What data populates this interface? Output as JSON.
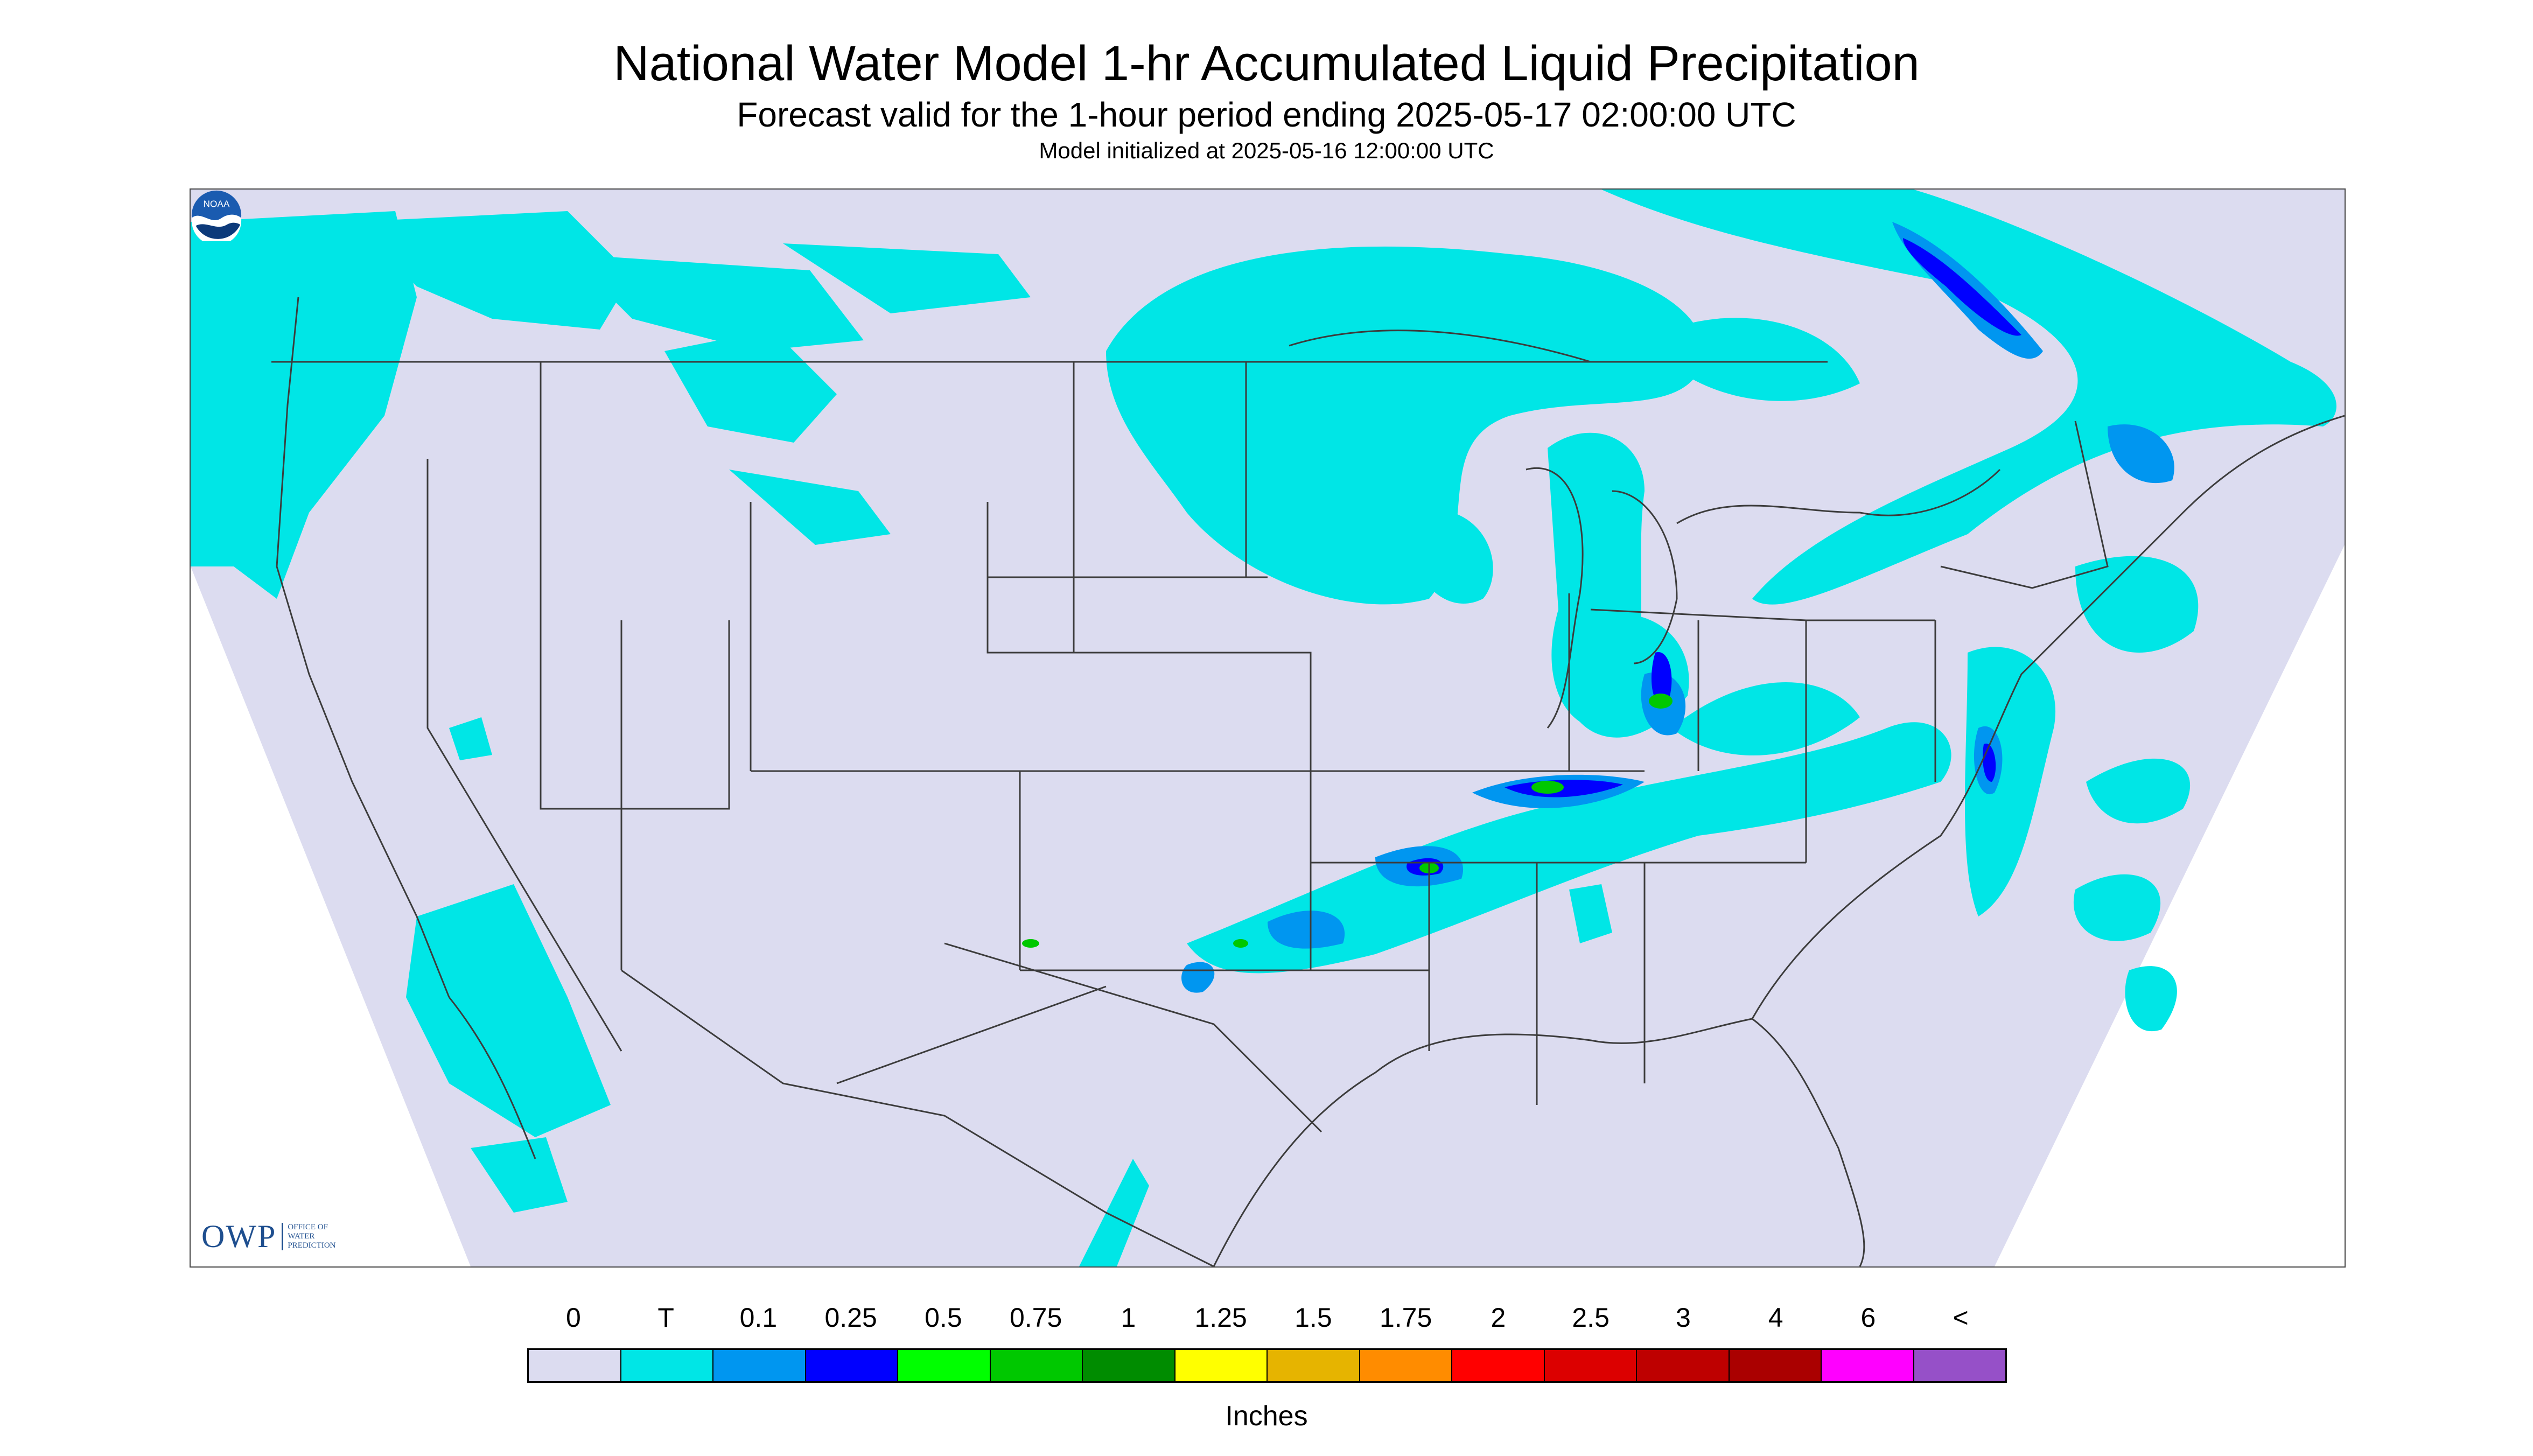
{
  "header": {
    "title": "National Water Model 1-hr Accumulated Liquid Precipitation",
    "subtitle": "Forecast valid for the 1-hour period ending 2025-05-17 02:00:00 UTC",
    "init_note": "Model initialized at 2025-05-16 12:00:00 UTC"
  },
  "logos": {
    "owp_mark": "OWP",
    "owp_text": [
      "OFFICE OF",
      "WATER",
      "PREDICTION"
    ],
    "noaa_text": "NOAA"
  },
  "legend": {
    "labels": [
      "0",
      "T",
      "0.1",
      "0.25",
      "0.5",
      "0.75",
      "1",
      "1.25",
      "1.5",
      "1.75",
      "2",
      "2.5",
      "3",
      "4",
      "6",
      "<"
    ],
    "colors": [
      "#dcdcf0",
      "#00e6e6",
      "#0096f0",
      "#0000ff",
      "#00ff00",
      "#00c800",
      "#008c00",
      "#ffff00",
      "#e6b400",
      "#ff8c00",
      "#ff0000",
      "#dc0000",
      "#be0000",
      "#aa0000",
      "#ff00ff",
      "#9650c8"
    ],
    "units": "Inches"
  },
  "map_colors": {
    "domain": "#dcdcf0",
    "light_precip": "#00e6e6",
    "medium_precip": "#0096f0",
    "heavy_precip": "#0000ff",
    "green_precip": "#00c800",
    "border": "#3c3c3c"
  }
}
